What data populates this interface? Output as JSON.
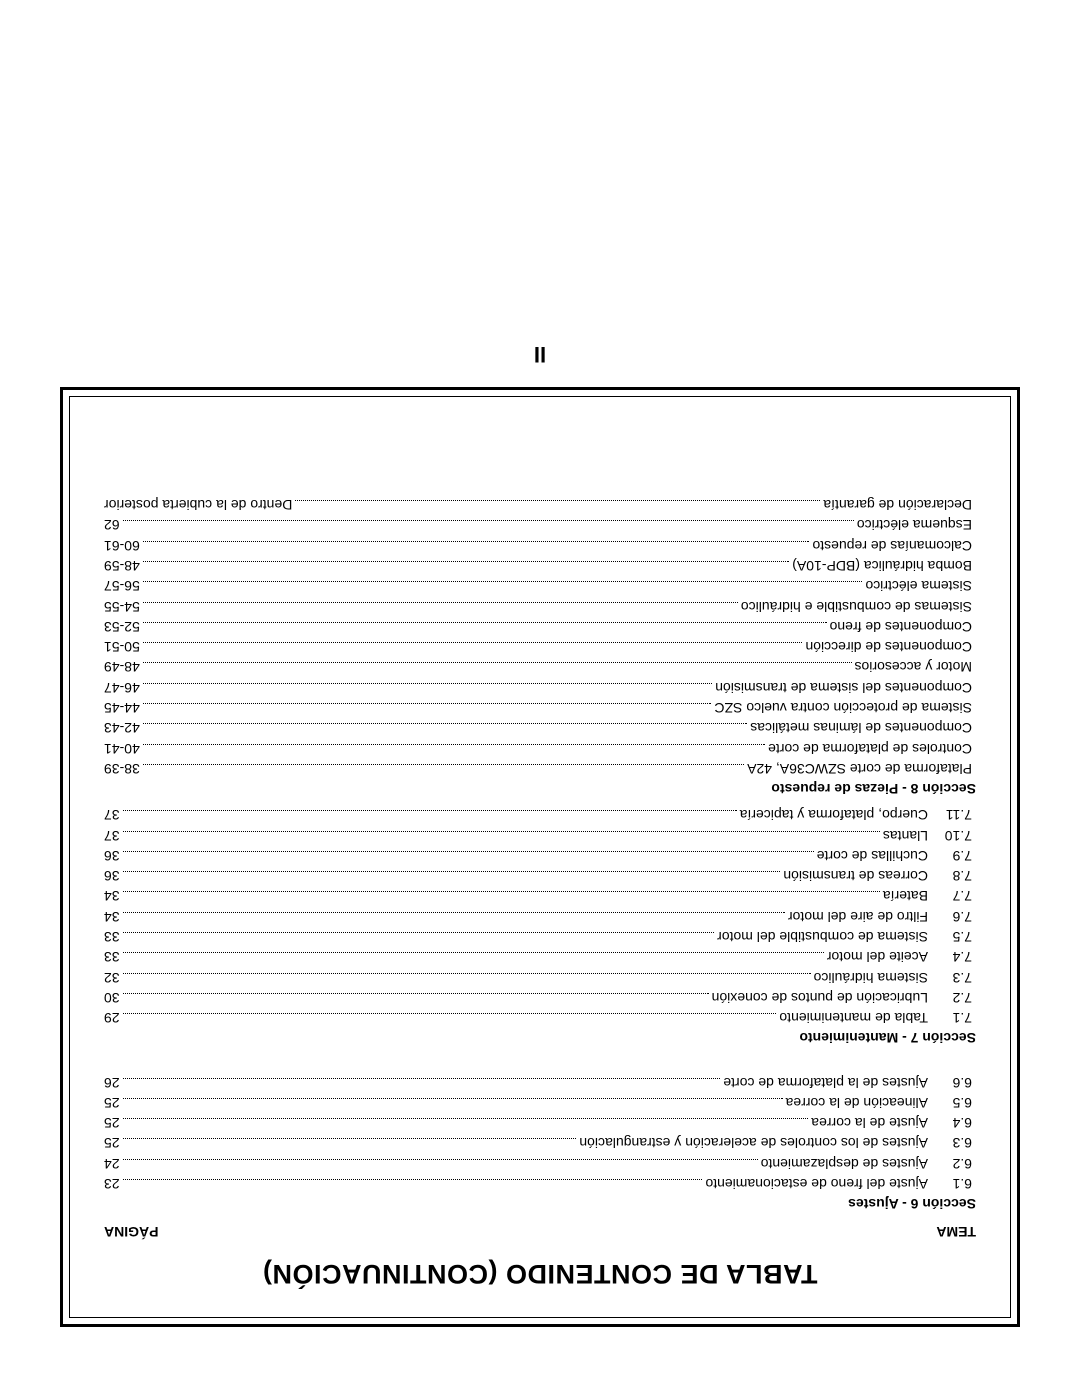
{
  "title": "TABLA DE CONTENIDO (CONTINUACIÓN)",
  "colLeft": "TEMA",
  "colRight": "PÁGINA",
  "pageNumber": "II",
  "section6": {
    "heading": "Sección 6 - Ajustes",
    "items": [
      {
        "n": "6.1",
        "t": "Ajuste del freno de estacionamiento",
        "p": "23"
      },
      {
        "n": "6.2",
        "t": "Ajustes de desplazamiento",
        "p": "24"
      },
      {
        "n": "6.3",
        "t": "Ajustes de los controles de aceleración y estrangulación",
        "p": "25"
      },
      {
        "n": "6.4",
        "t": "Ajuste de la correa",
        "p": "25"
      },
      {
        "n": "6.5",
        "t": "Alineación de la correa",
        "p": "25"
      },
      {
        "n": "6.6",
        "t": "Ajustes de la plataforma de corte",
        "p": "26"
      }
    ]
  },
  "section7": {
    "heading": "Sección 7 - Mantenimiento",
    "items": [
      {
        "n": "7.1",
        "t": "Tabla de mantenimiento",
        "p": "29"
      },
      {
        "n": "7.2",
        "t": "Lubricación de puntos de conexión",
        "p": "30"
      },
      {
        "n": "7.3",
        "t": "Sistema hidráulico",
        "p": "32"
      },
      {
        "n": "7.4",
        "t": "Aceite del motor",
        "p": "33"
      },
      {
        "n": "7.5",
        "t": "Sistema de combustible del motor",
        "p": "33"
      },
      {
        "n": "7.6",
        "t": "Filtro de aire del motor",
        "p": "34"
      },
      {
        "n": "7.7",
        "t": "Batería",
        "p": "34"
      },
      {
        "n": "7.8",
        "t": "Correas de transmisión",
        "p": "36"
      },
      {
        "n": "7.9",
        "t": "Cuchillas de corte",
        "p": "36"
      },
      {
        "n": "7.10",
        "t": "Llantas",
        "p": "37"
      },
      {
        "n": "7.11",
        "t": "Cuerpo, plataforma y tapicería",
        "p": "37"
      }
    ]
  },
  "section8": {
    "heading": "Sección 8 - Piezas de repuesto",
    "items": [
      {
        "t": "Plataforma de corte SZWC36A, 42A",
        "p": "38-39"
      },
      {
        "t": "Controles de plataforma de corte",
        "p": "40-41"
      },
      {
        "t": "Componentes de láminas metálicas",
        "p": "42-43"
      },
      {
        "t": "Sistema de protección contra vuelco SZC",
        "p": "44-45"
      },
      {
        "t": "Componentes del sistema de transmisión",
        "p": "46-47"
      },
      {
        "t": "Motor y accesorios",
        "p": "48-49"
      },
      {
        "t": "Componentes de dirección",
        "p": "50-51"
      },
      {
        "t": "Componentes de freno",
        "p": "52-53"
      },
      {
        "t": "Sistemas de combustible e hidráulico",
        "p": "54-55"
      },
      {
        "t": "Sistema eléctrico",
        "p": "56-57"
      },
      {
        "t": "Bomba hidráulica (BDP-10A)",
        "p": "48-59"
      },
      {
        "t": "Calcomanías de repuesto",
        "p": "60-61"
      },
      {
        "t": "Esquema eléctrico",
        "p": "62"
      },
      {
        "t": "Declaración de garantía",
        "p": "Dentro de la cubierta posterior"
      }
    ]
  }
}
